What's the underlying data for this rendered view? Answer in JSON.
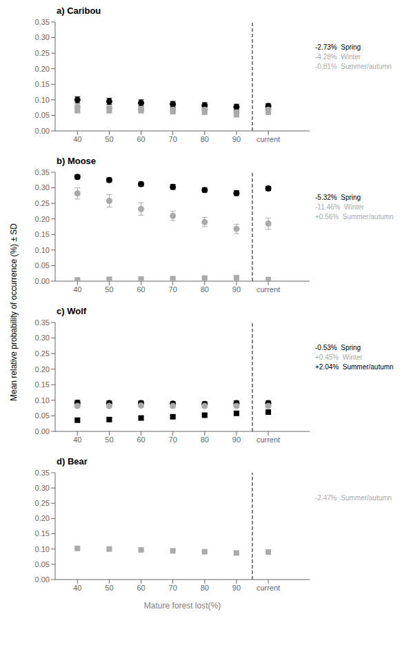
{
  "chart_data": [
    {
      "type": "scatter",
      "title": "a) Caribou",
      "ylabel": "Mean relative probability of occurrence (%) ± SD",
      "grid": false,
      "xlim": [
        33,
        113
      ],
      "xticks": [
        40,
        50,
        60,
        70,
        80,
        90,
        {
          "value": 100,
          "label": "current"
        }
      ],
      "ylim": [
        0,
        0.35
      ],
      "yticks": [
        {
          "value": 0.0,
          "label": "0.00"
        },
        {
          "value": 0.05,
          "label": "0.05"
        },
        {
          "value": 0.1,
          "label": "0.10"
        },
        {
          "value": 0.15,
          "label": "0.15"
        },
        {
          "value": 0.2,
          "label": "0.20"
        },
        {
          "value": 0.25,
          "label": "0.25"
        },
        {
          "value": 0.3,
          "label": "0.30"
        },
        {
          "value": 0.35,
          "label": "0.35"
        }
      ],
      "reference_lines": [
        {
          "x": 95,
          "line_style": "dashed",
          "color": "#000000"
        }
      ],
      "series": [
        {
          "color": "#000000",
          "marker": "circle",
          "x": [
            40,
            50,
            60,
            70,
            80,
            90,
            100
          ],
          "values": [
            0.1,
            0.095,
            0.09,
            0.086,
            0.082,
            0.077,
            0.08
          ],
          "errors": [
            0.01,
            0.01,
            0.01,
            0.009,
            0.009,
            0.009,
            0.008
          ]
        },
        {
          "color": "#aaaaaa",
          "marker": "circle",
          "x": [
            40,
            50,
            60,
            70,
            80,
            90,
            100
          ],
          "values": [
            0.078,
            0.074,
            0.071,
            0.068,
            0.068,
            0.06,
            0.068
          ],
          "errors": [
            0.006,
            0.006,
            0.006,
            0.006,
            0.006,
            0.006,
            0.005
          ]
        },
        {
          "color": "#aaaaaa",
          "marker": "square",
          "x": [
            40,
            50,
            60,
            70,
            80,
            90,
            100
          ],
          "values": [
            0.065,
            0.065,
            0.065,
            0.062,
            0.06,
            0.052,
            0.06
          ],
          "errors": [
            0.005,
            0.005,
            0.005,
            0.005,
            0.005,
            0.005,
            0.004
          ]
        }
      ],
      "annotations": [
        {
          "text": "-2.73%  Spring",
          "color": "#000000"
        },
        {
          "text": "-4.28%  Winter",
          "color": "#aaaaaa"
        },
        {
          "text": "-0.81%  Summer/autumn",
          "color": "#aaaaaa"
        }
      ]
    },
    {
      "type": "scatter",
      "title": "b) Moose",
      "grid": false,
      "xlim": [
        33,
        113
      ],
      "xticks": [
        40,
        50,
        60,
        70,
        80,
        90,
        {
          "value": 100,
          "label": "current"
        }
      ],
      "ylim": [
        0,
        0.35
      ],
      "yticks": [
        {
          "value": 0.0,
          "label": "0.00"
        },
        {
          "value": 0.05,
          "label": "0.05"
        },
        {
          "value": 0.1,
          "label": "0.10"
        },
        {
          "value": 0.15,
          "label": "0.15"
        },
        {
          "value": 0.2,
          "label": "0.20"
        },
        {
          "value": 0.25,
          "label": "0.25"
        },
        {
          "value": 0.3,
          "label": "0.30"
        },
        {
          "value": 0.35,
          "label": "0.35"
        }
      ],
      "reference_lines": [
        {
          "x": 95,
          "line_style": "dashed",
          "color": "#000000"
        }
      ],
      "series": [
        {
          "color": "#000000",
          "marker": "circle",
          "x": [
            40,
            50,
            60,
            70,
            80,
            90,
            100
          ],
          "values": [
            0.335,
            0.325,
            0.312,
            0.303,
            0.293,
            0.283,
            0.298
          ],
          "errors": [
            0.007,
            0.007,
            0.007,
            0.008,
            0.007,
            0.008,
            0.007
          ]
        },
        {
          "color": "#aaaaaa",
          "marker": "circle",
          "x": [
            40,
            50,
            60,
            70,
            80,
            90,
            100
          ],
          "values": [
            0.282,
            0.258,
            0.232,
            0.21,
            0.19,
            0.168,
            0.185
          ],
          "errors": [
            0.018,
            0.02,
            0.02,
            0.015,
            0.015,
            0.015,
            0.018
          ]
        },
        {
          "color": "#aaaaaa",
          "marker": "square",
          "x": [
            40,
            50,
            60,
            70,
            80,
            90,
            100
          ],
          "values": [
            0.004,
            0.006,
            0.007,
            0.008,
            0.01,
            0.011,
            0.005
          ],
          "errors": [
            0.002,
            0.002,
            0.002,
            0.002,
            0.002,
            0.002,
            0.002
          ]
        }
      ],
      "annotations": [
        {
          "text": "-5.32%  Spring",
          "color": "#000000"
        },
        {
          "text": "-11.46%  Winter",
          "color": "#aaaaaa"
        },
        {
          "text": "+0.56%  Summer/autumn",
          "color": "#aaaaaa"
        }
      ]
    },
    {
      "type": "scatter",
      "title": "c) Wolf",
      "grid": false,
      "xlim": [
        33,
        113
      ],
      "xticks": [
        40,
        50,
        60,
        70,
        80,
        90,
        {
          "value": 100,
          "label": "current"
        }
      ],
      "ylim": [
        0,
        0.35
      ],
      "yticks": [
        {
          "value": 0.0,
          "label": "0.00"
        },
        {
          "value": 0.05,
          "label": "0.05"
        },
        {
          "value": 0.1,
          "label": "0.10"
        },
        {
          "value": 0.15,
          "label": "0.15"
        },
        {
          "value": 0.2,
          "label": "0.20"
        },
        {
          "value": 0.25,
          "label": "0.25"
        },
        {
          "value": 0.3,
          "label": "0.30"
        },
        {
          "value": 0.35,
          "label": "0.35"
        }
      ],
      "reference_lines": [
        {
          "x": 95,
          "line_style": "dashed",
          "color": "#000000"
        }
      ],
      "series": [
        {
          "color": "#000000",
          "marker": "circle",
          "x": [
            40,
            50,
            60,
            70,
            80,
            90,
            100
          ],
          "values": [
            0.092,
            0.091,
            0.091,
            0.089,
            0.088,
            0.091,
            0.091
          ],
          "errors": [
            0.008,
            0.007,
            0.007,
            0.007,
            0.007,
            0.007,
            0.007
          ]
        },
        {
          "color": "#aaaaaa",
          "marker": "circle",
          "x": [
            40,
            50,
            60,
            70,
            80,
            90,
            100
          ],
          "values": [
            0.082,
            0.082,
            0.083,
            0.082,
            0.082,
            0.082,
            0.082
          ],
          "errors": [
            0.005,
            0.005,
            0.005,
            0.005,
            0.005,
            0.005,
            0.005
          ]
        },
        {
          "color": "#000000",
          "marker": "square",
          "x": [
            40,
            50,
            60,
            70,
            80,
            90,
            100
          ],
          "values": [
            0.036,
            0.038,
            0.043,
            0.047,
            0.052,
            0.058,
            0.062
          ],
          "errors": [
            0.005,
            0.005,
            0.005,
            0.005,
            0.005,
            0.005,
            0.005
          ]
        }
      ],
      "annotations": [
        {
          "text": "-0.53%  Spring",
          "color": "#000000"
        },
        {
          "text": "+0.45%  Winter",
          "color": "#aaaaaa"
        },
        {
          "text": "+2.04%  Summer/autumn",
          "color": "#000000"
        }
      ]
    },
    {
      "type": "scatter",
      "title": "d) Bear",
      "xlabel": "Mature forest lost(%)",
      "grid": false,
      "xlim": [
        33,
        113
      ],
      "xticks": [
        40,
        50,
        60,
        70,
        80,
        90,
        {
          "value": 100,
          "label": "current"
        }
      ],
      "ylim": [
        0,
        0.35
      ],
      "yticks": [
        {
          "value": 0.0,
          "label": "0.00"
        },
        {
          "value": 0.05,
          "label": "0.05"
        },
        {
          "value": 0.1,
          "label": "0.10"
        },
        {
          "value": 0.15,
          "label": "0.15"
        },
        {
          "value": 0.2,
          "label": "0.20"
        },
        {
          "value": 0.25,
          "label": "0.25"
        },
        {
          "value": 0.3,
          "label": "0.30"
        },
        {
          "value": 0.35,
          "label": "0.35"
        }
      ],
      "reference_lines": [
        {
          "x": 95,
          "line_style": "dashed",
          "color": "#000000"
        }
      ],
      "series": [
        {
          "color": "#aaaaaa",
          "marker": "square",
          "x": [
            40,
            50,
            60,
            70,
            80,
            90,
            100
          ],
          "values": [
            0.102,
            0.1,
            0.097,
            0.094,
            0.091,
            0.087,
            0.09
          ],
          "errors": [
            0.005,
            0.005,
            0.005,
            0.005,
            0.004,
            0.004,
            0.004
          ]
        }
      ],
      "annotations": [
        {
          "text": "-2.47%  Summer/autumn",
          "color": "#aaaaaa"
        }
      ]
    }
  ]
}
